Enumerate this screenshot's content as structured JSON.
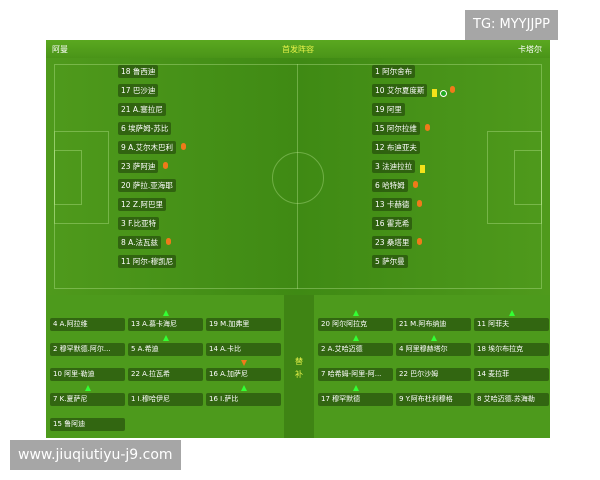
{
  "header": {
    "home_team": "阿曼",
    "title": "首发阵容",
    "away_team": "卡塔尔"
  },
  "home_starters": [
    {
      "label": "18 鲁西迪",
      "icons": []
    },
    {
      "label": "17 巴沙迪",
      "icons": []
    },
    {
      "label": "21 A.塞拉尼",
      "icons": []
    },
    {
      "label": "6 埃萨姆-苏比",
      "icons": []
    },
    {
      "label": "9 A.艾尔木巴利",
      "icons": [
        "sub-out"
      ]
    },
    {
      "label": "23 萨阿迪",
      "icons": [
        "sub-out"
      ]
    },
    {
      "label": "20 萨拉.亚海耶",
      "icons": []
    },
    {
      "label": "12 Z.阿巴里",
      "icons": []
    },
    {
      "label": "3 F.比亚特",
      "icons": []
    },
    {
      "label": "8 A.法瓦兹",
      "icons": [
        "sub-out"
      ]
    },
    {
      "label": "11 阿尔-穆凯尼",
      "icons": []
    }
  ],
  "away_starters": [
    {
      "label": "1 阿尔舍布",
      "icons": []
    },
    {
      "label": "10 艾尔夏度斯",
      "icons": [
        "yellow-card",
        "goal",
        "sub-out"
      ]
    },
    {
      "label": "19 阿里",
      "icons": []
    },
    {
      "label": "15 阿尔拉维",
      "icons": [
        "sub-out"
      ]
    },
    {
      "label": "12 布迪亚夫",
      "icons": []
    },
    {
      "label": "3 法迪拉拉",
      "icons": [
        "yellow-card"
      ]
    },
    {
      "label": "6 哈特姆",
      "icons": [
        "sub-out"
      ]
    },
    {
      "label": "13 卡赫德",
      "icons": [
        "sub-out"
      ]
    },
    {
      "label": "16 霍克希",
      "icons": []
    },
    {
      "label": "23 桑塔里",
      "icons": [
        "sub-out"
      ]
    },
    {
      "label": "5 萨尔曼",
      "icons": []
    }
  ],
  "bench_label": "替补",
  "home_bench": [
    {
      "label": "4 A.阿拉维",
      "mark": ""
    },
    {
      "label": "13 A.慕卡海尼",
      "mark": "in"
    },
    {
      "label": "19 M.加弗里",
      "mark": ""
    },
    {
      "label": "2 穆罕默德.阿尔...",
      "mark": ""
    },
    {
      "label": "5 A.希迪",
      "mark": "in"
    },
    {
      "label": "14 A.卡比",
      "mark": ""
    },
    {
      "label": "10 阿里-勒迪",
      "mark": ""
    },
    {
      "label": "22 A.拉瓦希",
      "mark": ""
    },
    {
      "label": "16 A.加萨尼",
      "mark": "out"
    },
    {
      "label": "7 K.夏萨尼",
      "mark": "in"
    },
    {
      "label": "1 I.穆哈伊尼",
      "mark": ""
    },
    {
      "label": "16 I.萨比",
      "mark": "in"
    },
    {
      "label": "15 鲁阿迪",
      "mark": ""
    }
  ],
  "away_bench": [
    {
      "label": "20 阿尔阿拉克",
      "mark": "in"
    },
    {
      "label": "21 M.阿布纳迪",
      "mark": ""
    },
    {
      "label": "11 阿菲夫",
      "mark": "in"
    },
    {
      "label": "2 A.艾哈迈德",
      "mark": "in"
    },
    {
      "label": "4 阿里穆赫塔尔",
      "mark": "in"
    },
    {
      "label": "18 埃尔布拉克",
      "mark": ""
    },
    {
      "label": "7 哈希姆-阿里-阿...",
      "mark": ""
    },
    {
      "label": "22 巴尔沙姆",
      "mark": ""
    },
    {
      "label": "14 麦拉菲",
      "mark": ""
    },
    {
      "label": "17 穆罕默德",
      "mark": "in"
    },
    {
      "label": "9 Y.阿布杜利穆格",
      "mark": ""
    },
    {
      "label": "8 艾哈迈德.苏海勒",
      "mark": ""
    }
  ],
  "watermarks": {
    "top": "TG: MYYJJPP",
    "bottom": "www.jiuqiutiyu-j9.com"
  },
  "colors": {
    "pitch": "#4d9a1c",
    "title": "#e8f24a",
    "sub_out": "#f07a1a",
    "sub_in": "#33ff33",
    "yellow_card": "#f4e21a"
  }
}
